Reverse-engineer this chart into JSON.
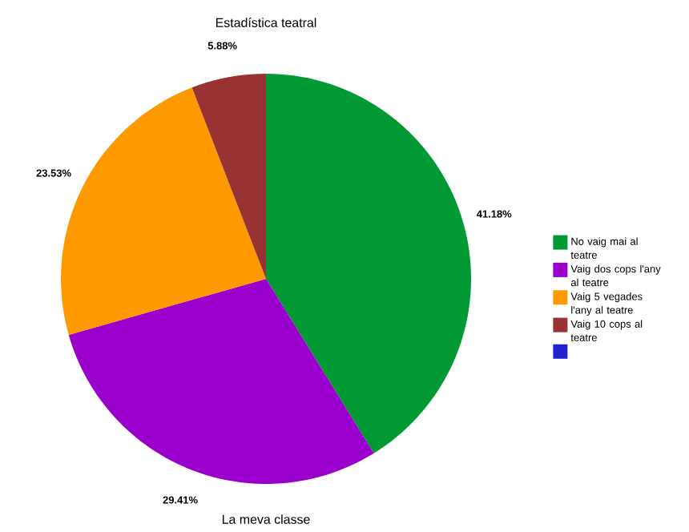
{
  "chart_data": {
    "type": "pie",
    "title": "Estadística teatral",
    "xlabel": "La meva classe",
    "categories": [
      "No vaig mai al teatre",
      "Vaig dos cops l'any al teatre",
      "Vaig 5 vegades l'any al teatre",
      "Vaig 10 cops al teatre",
      null
    ],
    "values": [
      41.18,
      29.41,
      23.53,
      5.88,
      0
    ],
    "colors": [
      "#009933",
      "#9900cc",
      "#ff9900",
      "#993333",
      "#2222cc"
    ],
    "value_labels": [
      "41.18%",
      "29.41%",
      "23.53%",
      "5.88%",
      null
    ],
    "legend": "right"
  }
}
